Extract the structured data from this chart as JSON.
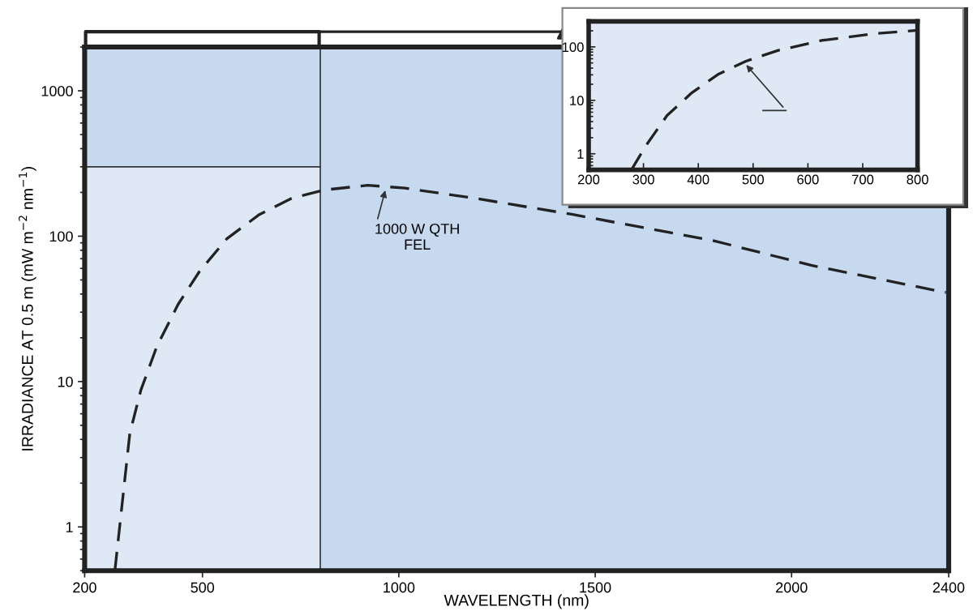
{
  "chart_data": [
    {
      "type": "line",
      "xlabel": "WAVELENGTH (nm)",
      "ylabel": "IRRADIANCE AT 0.5 m (mW m$^{−2}$ nm$^{−1}$)",
      "log": "y",
      "line_style": "dashed",
      "marker": "none",
      "grid": false,
      "legend": false,
      "xlim": [
        200,
        2400
      ],
      "ylim": [
        0.5,
        2000
      ],
      "xticks": [
        200,
        500,
        1000,
        1500,
        2000,
        2400
      ],
      "yticks": [
        1,
        10,
        100,
        1000
      ],
      "series": [
        {
          "color": "#222222",
          "x": [
            277,
            315,
            343,
            384,
            438,
            492,
            562,
            645,
            727,
            810,
            921,
            1016,
            1195,
            1443,
            1802,
            2050,
            2393
          ],
          "values": [
            0.5,
            4.4,
            8.7,
            17.5,
            34,
            57,
            96,
            141,
            182,
            208,
            224,
            214,
            182,
            141,
            93,
            63,
            41
          ]
        }
      ],
      "annotations": [
        {
          "text": "1000 W QTH\nFEL",
          "x": 967,
          "y": 214
        }
      ]
    },
    {
      "type": "line",
      "log": "y",
      "line_style": "dashed",
      "marker": "none",
      "grid": false,
      "legend": false,
      "xlim": [
        200,
        800
      ],
      "ylim": [
        0.5,
        300
      ],
      "xticks": [
        200,
        300,
        400,
        500,
        600,
        700,
        800
      ],
      "yticks": [
        1,
        10,
        100
      ],
      "series": [
        {
          "color": "#222222",
          "x": [
            278,
            304,
            343,
            388,
            437,
            487,
            546,
            625,
            724,
            800
          ],
          "values": [
            0.5,
            1.4,
            5.2,
            13.8,
            31,
            54,
            86,
            132,
            178,
            204
          ]
        }
      ]
    }
  ]
}
